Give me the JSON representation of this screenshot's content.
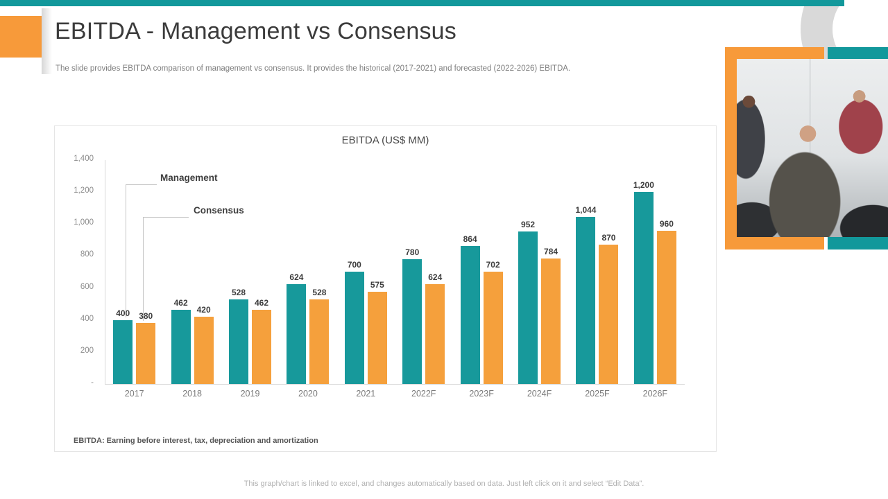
{
  "slide": {
    "title": "EBITDA - Management vs Consensus",
    "subtitle": "The slide provides EBITDA comparison of management vs consensus. It provides the historical (2017-2021) and forecasted (2022-2026) EBITDA.",
    "footnote": "EBITDA:  Earning before  interest, tax, depreciation and amortization",
    "bottom_note": "This graph/chart is linked to excel,  and changes automatically based on data. Just left click on it and select “Edit Data”."
  },
  "colors": {
    "accent_teal": "#12989B",
    "accent_orange": "#F79A3A",
    "bar_management": "#17999B",
    "bar_consensus": "#F5A03C",
    "arc_gray": "#D9D9D9"
  },
  "chart_data": {
    "type": "bar",
    "title": "EBITDA (US$ MM)",
    "categories": [
      "2017",
      "2018",
      "2019",
      "2020",
      "2021",
      "2022F",
      "2023F",
      "2024F",
      "2025F",
      "2026F"
    ],
    "series": [
      {
        "name": "Management",
        "color": "#17999B",
        "values": [
          400,
          462,
          528,
          624,
          700,
          780,
          864,
          952,
          1044,
          1200
        ]
      },
      {
        "name": "Consensus",
        "color": "#F5A03C",
        "values": [
          380,
          420,
          462,
          528,
          575,
          624,
          702,
          784,
          870,
          960
        ]
      }
    ],
    "ylim": [
      0,
      1400
    ],
    "ytick_labels": [
      "1,400",
      "1,200",
      "1,000",
      "800",
      "600",
      "400",
      "200",
      "-"
    ],
    "grid": false,
    "value_labels": true,
    "legend_position": "callout top-left"
  }
}
